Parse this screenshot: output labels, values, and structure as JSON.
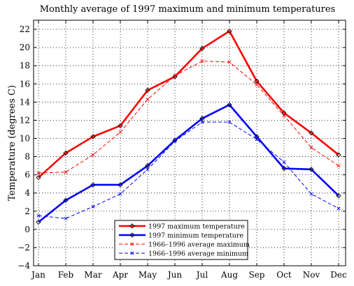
{
  "chart_data": {
    "type": "line",
    "title": "Monthly average of 1997 maximum and minimum temperatures",
    "xlabel": "",
    "ylabel": "Temperature (degrees C)",
    "categories": [
      "Jan",
      "Feb",
      "Mar",
      "Apr",
      "May",
      "Jun",
      "Jul",
      "Aug",
      "Sep",
      "Oct",
      "Nov",
      "Dec"
    ],
    "ylim": [
      -4,
      23
    ],
    "yticks": [
      -4,
      -2,
      0,
      2,
      4,
      6,
      8,
      10,
      12,
      14,
      16,
      18,
      20,
      22
    ],
    "grid": true,
    "legend_position": "bottom-center",
    "series": [
      {
        "name": "1997 maximum temperature",
        "color": "#ff0000",
        "style": "solid-thick",
        "marker": "diamond",
        "values": [
          5.7,
          8.4,
          10.2,
          11.4,
          15.3,
          16.8,
          19.9,
          21.8,
          16.3,
          12.8,
          10.6,
          8.2
        ]
      },
      {
        "name": "1997 minimum temperature",
        "color": "#0000ff",
        "style": "solid-thick",
        "marker": "diamond",
        "values": [
          0.8,
          3.2,
          4.9,
          4.9,
          7.0,
          9.8,
          12.2,
          13.7,
          10.2,
          6.7,
          6.6,
          3.7
        ]
      },
      {
        "name": "1966–1996 average maximum",
        "color": "#ff0000",
        "style": "dashed",
        "marker": "x",
        "values": [
          6.2,
          6.3,
          8.2,
          10.7,
          14.3,
          16.9,
          18.5,
          18.4,
          15.9,
          12.5,
          9.0,
          7.0
        ]
      },
      {
        "name": "1966–1996 average minimum",
        "color": "#0000ff",
        "style": "dashed",
        "marker": "x",
        "values": [
          1.5,
          1.2,
          2.5,
          3.9,
          6.6,
          9.7,
          11.8,
          11.8,
          9.9,
          7.4,
          3.9,
          2.3
        ]
      }
    ]
  }
}
